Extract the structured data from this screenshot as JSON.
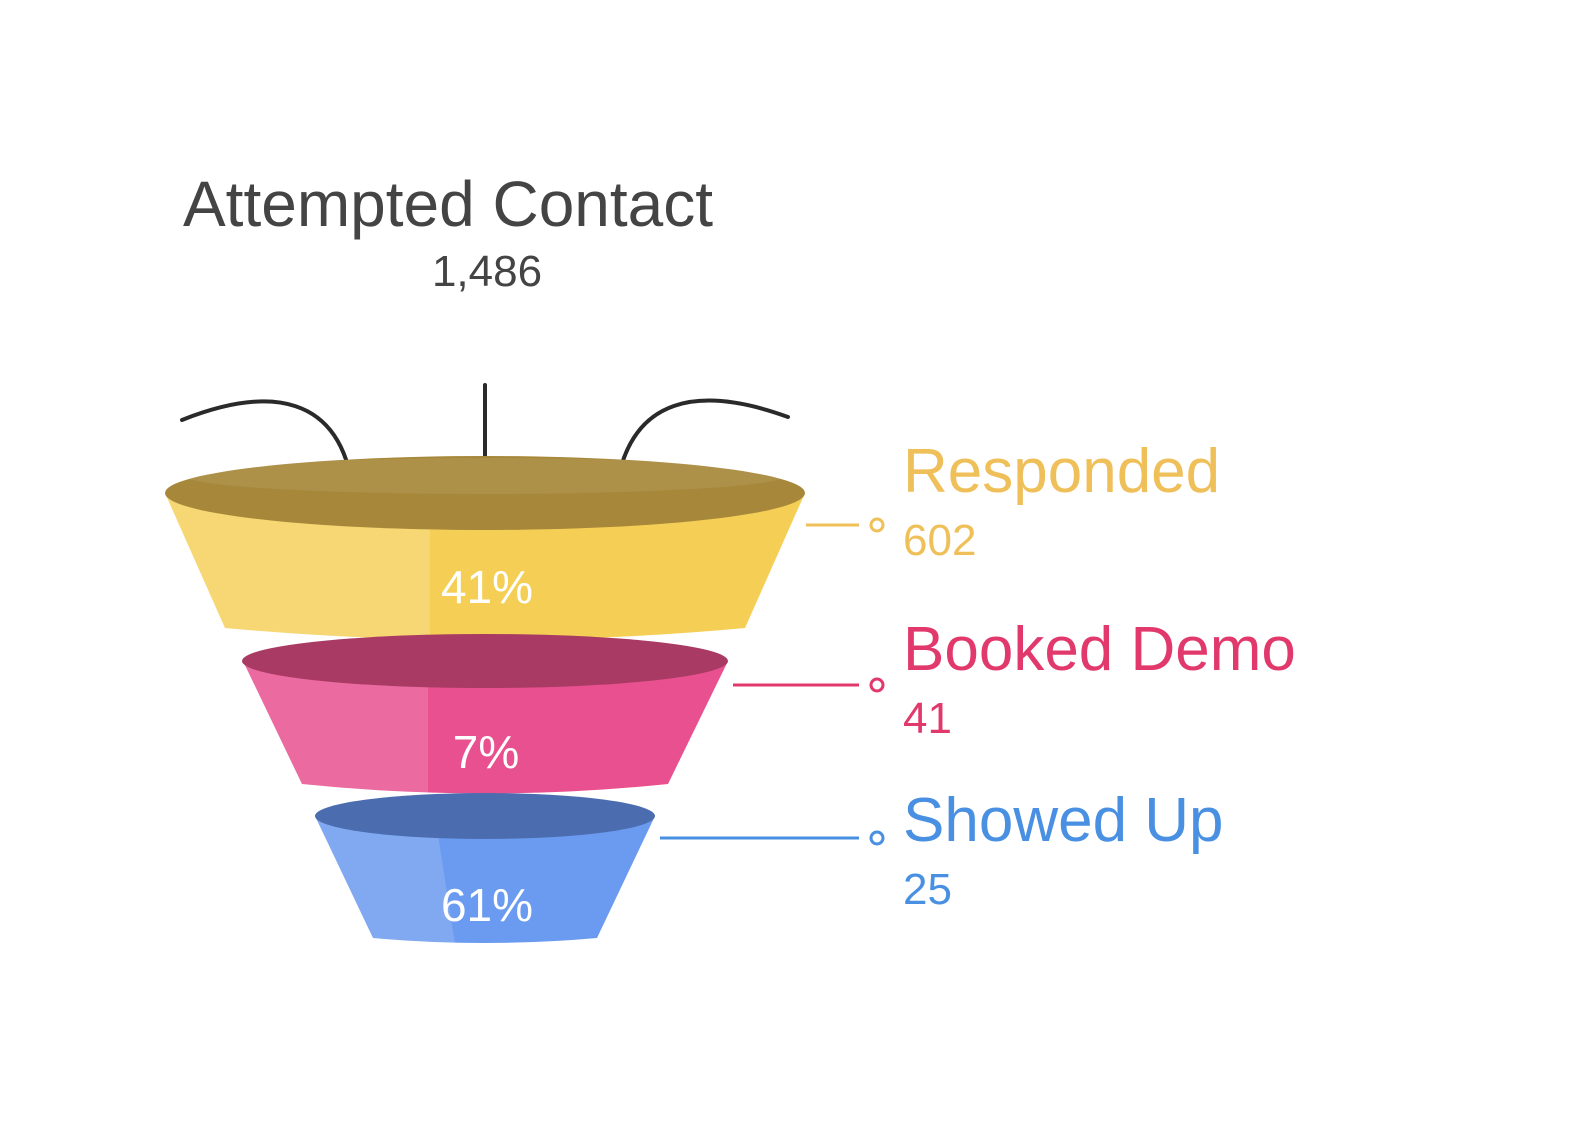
{
  "chart_data": {
    "type": "funnel",
    "top": {
      "label": "Attempted Contact",
      "value": "1,486",
      "color": "#444444"
    },
    "stages": [
      {
        "label": "Responded",
        "value": "602",
        "percent": "41%",
        "color": "#EFC05A",
        "body_color": "#F5CF55",
        "lip_color": "#A7883A"
      },
      {
        "label": "Booked Demo",
        "value": "41",
        "percent": "7%",
        "color": "#E2396D",
        "body_color": "#E8508F",
        "lip_color": "#A83A64"
      },
      {
        "label": "Showed Up",
        "value": "25",
        "percent": "61%",
        "color": "#4A90E2",
        "body_color": "#6B9BF0",
        "lip_color": "#4B6DB0"
      }
    ],
    "arrow_color": "#2A2A2A"
  }
}
